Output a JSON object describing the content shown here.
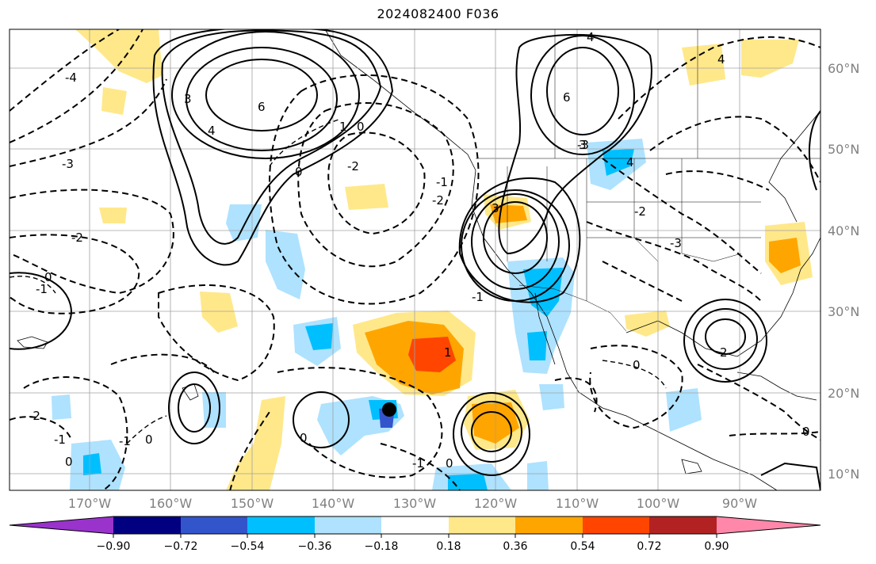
{
  "title": "2024082400 F036",
  "lat_labels": [
    "60°N",
    "50°N",
    "40°N",
    "30°N",
    "20°N",
    "10°N"
  ],
  "lon_labels": [
    "170°W",
    "160°W",
    "150°W",
    "140°W",
    "130°W",
    "120°W",
    "110°W",
    "100°W",
    "90°W"
  ],
  "colorbar": {
    "colors": [
      "#9933cc",
      "#000080",
      "#3355cc",
      "#00bfff",
      "#aee2ff",
      "#ffffff",
      "#ffe88a",
      "#ffa500",
      "#ff4500",
      "#b22222",
      "#ff88aa"
    ],
    "tick_labels": [
      "−0.90",
      "−0.72",
      "−0.54",
      "−0.36",
      "−0.18",
      "0.18",
      "0.36",
      "0.54",
      "0.72",
      "0.90"
    ]
  },
  "contour_labels": {
    "pos": [
      "4",
      "6",
      "3",
      "6",
      "4",
      "3",
      "1",
      "3",
      "2",
      "1",
      "4",
      "4"
    ],
    "neg": [
      "-4",
      "-3",
      "-2",
      "-1",
      "-1",
      "-2",
      "-2",
      "-3",
      "-1",
      "-2",
      "-3",
      "-1",
      "-2",
      "-1",
      "-1"
    ],
    "zero": [
      "0",
      "0",
      "0",
      "0",
      "0",
      "0",
      "0",
      "0",
      "0"
    ]
  },
  "marker": "storm-center"
}
